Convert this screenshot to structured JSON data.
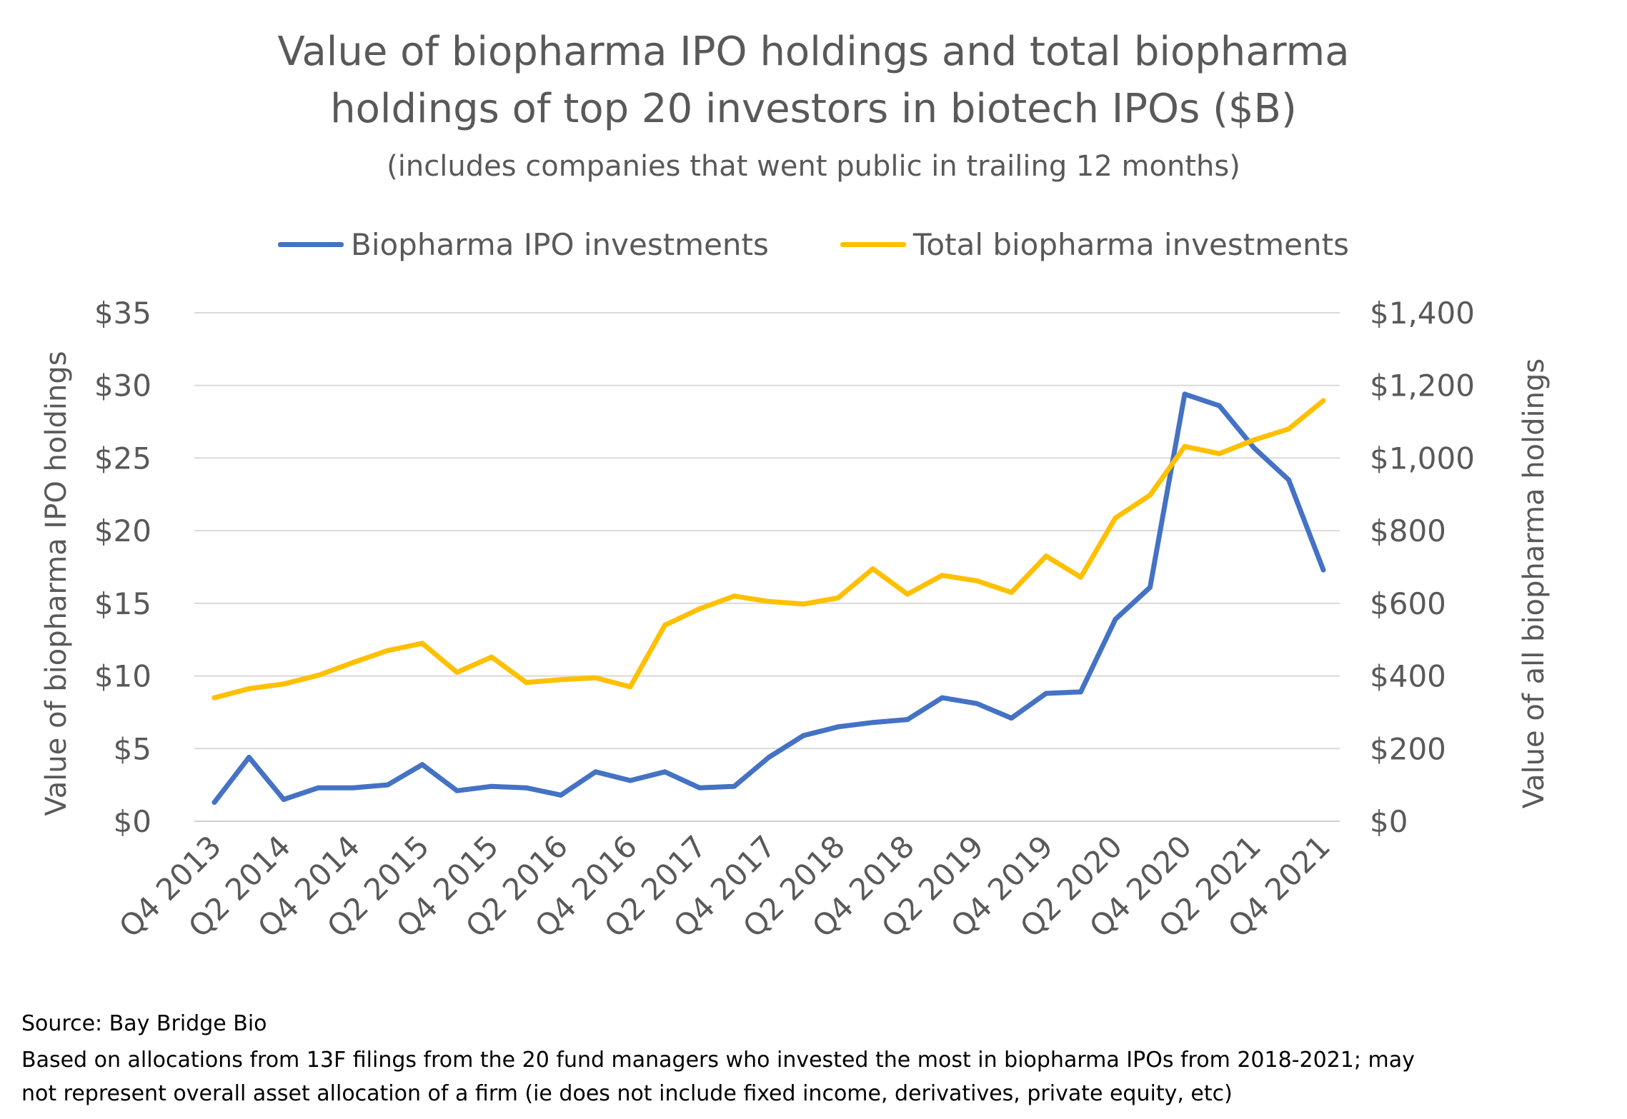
{
  "chart_data": {
    "type": "line",
    "title_line_1": "Value of biopharma IPO holdings and total biopharma",
    "title_line_2": "holdings of top 20 investors in biotech IPOs ($B)",
    "subtitle": "(includes companies that went public in trailing 12 months)",
    "ylabel": "Value of  biopharma IPO holdings",
    "y2label": "Value of  all biopharma holdings",
    "ylim": [
      0,
      35
    ],
    "y2lim": [
      0,
      1400
    ],
    "y_ticks": [
      "$0",
      "$5",
      "$10",
      "$15",
      "$20",
      "$25",
      "$30",
      "$35"
    ],
    "y2_ticks": [
      "$0",
      "$200",
      "$400",
      "$600",
      "$800",
      "$1,000",
      "$1,200",
      "$1,400"
    ],
    "grid": true,
    "legend_position": "top",
    "x_tick_labels": [
      "Q4 2013",
      "Q2 2014",
      "Q4 2014",
      "Q2 2015",
      "Q4 2015",
      "Q2 2016",
      "Q4 2016",
      "Q2 2017",
      "Q4 2017",
      "Q2 2018",
      "Q4 2018",
      "Q2 2019",
      "Q4 2019",
      "Q2 2020",
      "Q4 2020",
      "Q2 2021",
      "Q4 2021"
    ],
    "x": [
      "Q4 2013",
      "Q1 2014",
      "Q2 2014",
      "Q3 2014",
      "Q4 2014",
      "Q1 2015",
      "Q2 2015",
      "Q3 2015",
      "Q4 2015",
      "Q1 2016",
      "Q2 2016",
      "Q3 2016",
      "Q4 2016",
      "Q1 2017",
      "Q2 2017",
      "Q3 2017",
      "Q4 2017",
      "Q1 2018",
      "Q2 2018",
      "Q3 2018",
      "Q4 2018",
      "Q1 2019",
      "Q2 2019",
      "Q3 2019",
      "Q4 2019",
      "Q1 2020",
      "Q2 2020",
      "Q3 2020",
      "Q4 2020",
      "Q1 2021",
      "Q2 2021",
      "Q3 2021",
      "Q4 2021"
    ],
    "series": [
      {
        "name": "Biopharma IPO investments",
        "axis": "left",
        "color": "#4472C4",
        "values": [
          1.3,
          4.4,
          1.5,
          2.3,
          2.3,
          2.5,
          3.9,
          2.1,
          2.4,
          2.3,
          1.8,
          3.4,
          2.8,
          3.4,
          2.3,
          2.4,
          4.4,
          5.9,
          6.5,
          6.8,
          7.0,
          8.5,
          8.1,
          7.1,
          8.8,
          8.9,
          13.9,
          16.1,
          29.4,
          28.6,
          25.7,
          23.5,
          17.3
        ]
      },
      {
        "name": "Total biopharma investments",
        "axis": "right",
        "color": "#FFC000",
        "values": [
          340,
          365,
          378,
          402,
          437,
          470,
          490,
          410,
          452,
          382,
          390,
          395,
          370,
          540,
          585,
          620,
          605,
          598,
          615,
          695,
          625,
          677,
          662,
          630,
          730,
          672,
          835,
          898,
          1032,
          1012,
          1050,
          1080,
          1158
        ]
      }
    ]
  },
  "footnotes": {
    "source": "Source: Bay Bridge Bio",
    "line_1": "Based on allocations from 13F filings from the 20 fund managers who invested the most in biopharma IPOs from 2018-2021; may",
    "line_2": "not represent overall asset allocation of a firm (ie does not include fixed income, derivatives, private equity, etc)"
  }
}
